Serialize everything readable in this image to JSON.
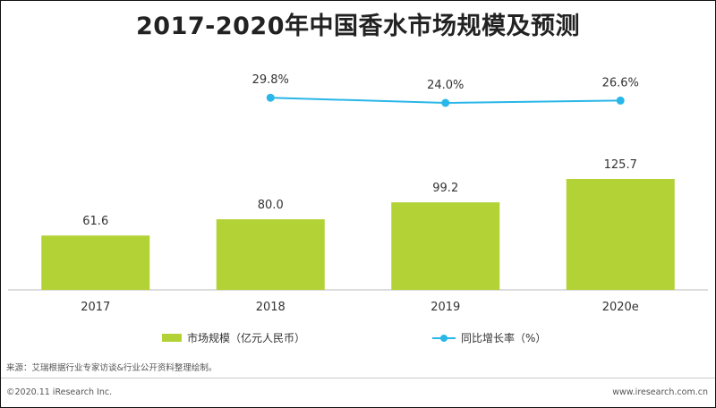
{
  "chart_data": {
    "type": "bar",
    "title": "2017-2020年中国香水市场规模及预测",
    "categories": [
      "2017",
      "2018",
      "2019",
      "2020e"
    ],
    "series": [
      {
        "name": "市场规模（亿元人民币）",
        "type": "bar",
        "values": [
          61.6,
          80.0,
          99.2,
          125.7
        ],
        "labels": [
          "61.6",
          "80.0",
          "99.2",
          "125.7"
        ],
        "color": "#b2d235"
      },
      {
        "name": "同比增长率（%）",
        "type": "line",
        "values": [
          null,
          29.8,
          24.0,
          26.6
        ],
        "labels": [
          "",
          "29.8%",
          "24.0%",
          "26.6%"
        ],
        "color": "#29b6e8"
      }
    ],
    "legend_position": "bottom",
    "grid": false
  },
  "footer": {
    "source": "来源：艾瑞根据行业专家访谈&行业公开资料整理绘制。",
    "copyright": "©2020.11 iResearch Inc.",
    "website": "www.iresearch.com.cn"
  }
}
